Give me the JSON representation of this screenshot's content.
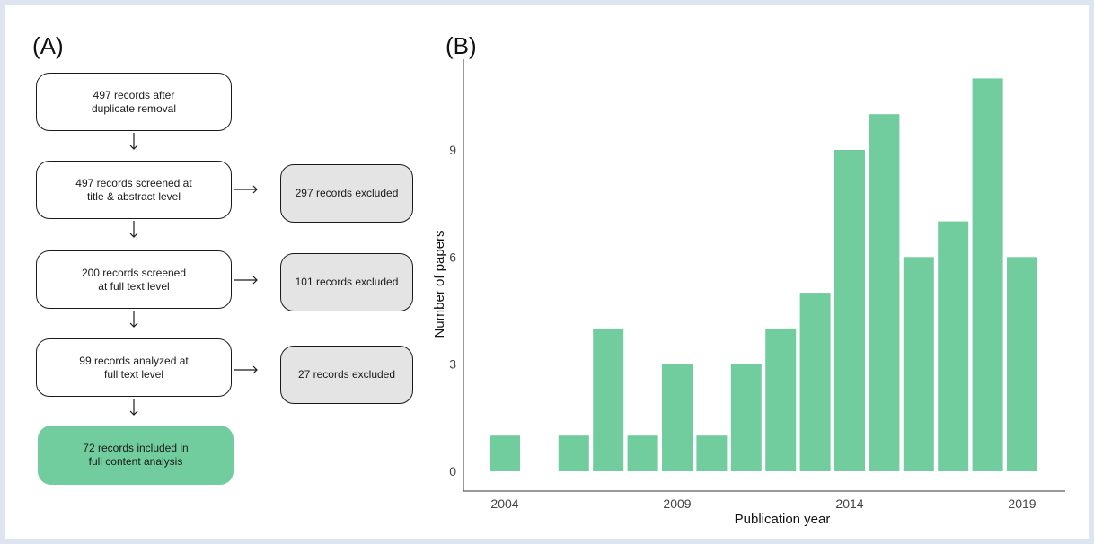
{
  "panel_a": {
    "label": "(A)",
    "steps": [
      {
        "text": "497 records  after\nduplicate removal"
      },
      {
        "text": "497 records screened at\ntitle & abstract level"
      },
      {
        "text": "200 records screened\nat full text level"
      },
      {
        "text": "99 records analyzed at\nfull text level"
      },
      {
        "text": "72 records included in\nfull content analysis"
      }
    ],
    "exclusions": [
      {
        "text": "297 records excluded"
      },
      {
        "text": "101 records excluded"
      },
      {
        "text": "27 records excluded"
      }
    ],
    "colors": {
      "included": "#71cc9e",
      "excluded": "#e4e4e4"
    }
  },
  "panel_b": {
    "label": "(B)"
  },
  "chart_data": {
    "type": "bar",
    "x": [
      2004,
      2006,
      2007,
      2008,
      2009,
      2010,
      2011,
      2012,
      2013,
      2014,
      2015,
      2016,
      2017,
      2018,
      2019
    ],
    "values": [
      1,
      1,
      4,
      1,
      3,
      1,
      3,
      4,
      5,
      9,
      10,
      6,
      7,
      11,
      6
    ],
    "xticks": [
      2004,
      2009,
      2014,
      2019
    ],
    "yticks": [
      0,
      3,
      6,
      9
    ],
    "xlabel": "Publication year",
    "ylabel": "Number of papers",
    "xlim": [
      2003,
      2020.5
    ],
    "ylim": [
      0,
      11.5
    ],
    "bar_color": "#71cc9e",
    "grid": false
  }
}
